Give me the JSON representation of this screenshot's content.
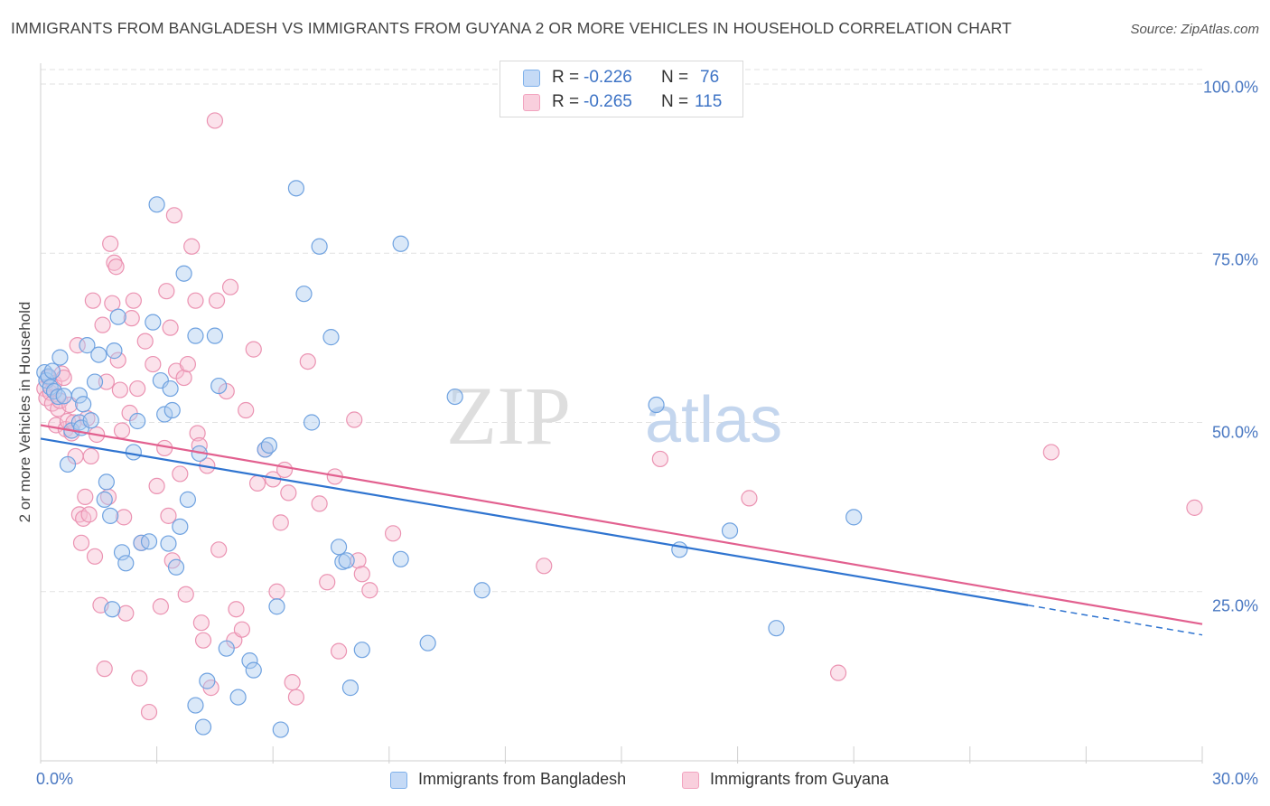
{
  "title": "IMMIGRANTS FROM BANGLADESH VS IMMIGRANTS FROM GUYANA 2 OR MORE VEHICLES IN HOUSEHOLD CORRELATION CHART",
  "source": "Source: ZipAtlas.com",
  "watermark": {
    "zip": "ZIP",
    "atlas": "atlas"
  },
  "colors": {
    "bangladesh": "#7eb0ea",
    "bangladesh_line": "#2f74d0",
    "guyana": "#f2a3bf",
    "guyana_line": "#e2608f",
    "tick_text": "#4a78c2"
  },
  "stats": [
    {
      "r_label": "R =",
      "r_value": "-0.226",
      "n_label": "N =",
      "n_value": "76"
    },
    {
      "r_label": "R =",
      "r_value": "-0.265",
      "n_label": "N =",
      "n_value": "115"
    }
  ],
  "chart_data": {
    "type": "scatter",
    "title": "IMMIGRANTS FROM BANGLADESH VS IMMIGRANTS FROM GUYANA 2 OR MORE VEHICLES IN HOUSEHOLD CORRELATION CHART",
    "xlabel": "",
    "ylabel": "2 or more Vehicles in Household",
    "xlim": [
      0,
      30
    ],
    "ylim": [
      0,
      102
    ],
    "x_tick_labels": [
      "0.0%",
      "30.0%"
    ],
    "y_ticks": [
      25,
      50,
      75,
      100
    ],
    "y_tick_labels": [
      "25.0%",
      "50.0%",
      "75.0%",
      "100.0%"
    ],
    "grid": true,
    "legend_position": "bottom-center",
    "series": [
      {
        "name": "Immigrants from Bangladesh",
        "color": "#7eb0ea",
        "trend": {
          "x": [
            0,
            25.5
          ],
          "y": [
            47.6,
            23.0
          ],
          "dashed_extension_to": [
            30,
            18.6
          ]
        },
        "points": [
          [
            0.1,
            57.4
          ],
          [
            0.15,
            56.2
          ],
          [
            0.2,
            56.8
          ],
          [
            0.25,
            55.2
          ],
          [
            0.3,
            57.6
          ],
          [
            0.35,
            54.6
          ],
          [
            0.45,
            53.8
          ],
          [
            0.5,
            59.6
          ],
          [
            0.6,
            53.9
          ],
          [
            0.7,
            43.8
          ],
          [
            0.8,
            48.8
          ],
          [
            1.0,
            50.0
          ],
          [
            1.0,
            54.0
          ],
          [
            1.05,
            49.2
          ],
          [
            1.1,
            52.7
          ],
          [
            1.2,
            61.4
          ],
          [
            1.3,
            50.3
          ],
          [
            1.4,
            56.0
          ],
          [
            1.5,
            60.0
          ],
          [
            1.65,
            38.6
          ],
          [
            1.7,
            41.2
          ],
          [
            1.8,
            36.2
          ],
          [
            1.85,
            22.4
          ],
          [
            1.9,
            60.6
          ],
          [
            2.0,
            65.6
          ],
          [
            2.1,
            30.8
          ],
          [
            2.2,
            29.2
          ],
          [
            2.4,
            45.6
          ],
          [
            2.5,
            50.2
          ],
          [
            2.6,
            32.2
          ],
          [
            2.8,
            32.4
          ],
          [
            2.9,
            64.8
          ],
          [
            3.0,
            82.2
          ],
          [
            3.1,
            56.2
          ],
          [
            3.2,
            51.2
          ],
          [
            3.3,
            32.1
          ],
          [
            3.35,
            55.0
          ],
          [
            3.4,
            51.8
          ],
          [
            3.5,
            28.6
          ],
          [
            3.6,
            34.6
          ],
          [
            3.7,
            72.0
          ],
          [
            3.8,
            38.6
          ],
          [
            4.0,
            62.8
          ],
          [
            4.1,
            45.4
          ],
          [
            4.0,
            8.2
          ],
          [
            4.2,
            5.0
          ],
          [
            4.3,
            11.8
          ],
          [
            4.5,
            62.8
          ],
          [
            4.6,
            55.4
          ],
          [
            4.8,
            16.6
          ],
          [
            5.1,
            9.4
          ],
          [
            5.4,
            14.8
          ],
          [
            5.5,
            13.4
          ],
          [
            5.8,
            46.0
          ],
          [
            5.9,
            46.6
          ],
          [
            6.1,
            22.8
          ],
          [
            6.2,
            4.6
          ],
          [
            6.6,
            84.6
          ],
          [
            6.8,
            69.0
          ],
          [
            7.0,
            50.0
          ],
          [
            7.2,
            76.0
          ],
          [
            7.5,
            62.6
          ],
          [
            7.7,
            31.6
          ],
          [
            7.8,
            29.4
          ],
          [
            7.9,
            29.6
          ],
          [
            8.0,
            10.8
          ],
          [
            8.3,
            16.4
          ],
          [
            9.3,
            76.4
          ],
          [
            9.3,
            29.8
          ],
          [
            10.0,
            17.4
          ],
          [
            10.7,
            53.8
          ],
          [
            11.4,
            25.2
          ],
          [
            15.9,
            52.6
          ],
          [
            16.5,
            31.2
          ],
          [
            17.8,
            34.0
          ],
          [
            19.0,
            19.6
          ],
          [
            21.0,
            36.0
          ]
        ]
      },
      {
        "name": "Immigrants from Guyana",
        "color": "#f2a3bf",
        "trend": {
          "x": [
            0,
            30
          ],
          "y": [
            49.6,
            20.2
          ]
        },
        "points": [
          [
            0.1,
            55.0
          ],
          [
            0.15,
            53.6
          ],
          [
            0.2,
            56.6
          ],
          [
            0.25,
            54.4
          ],
          [
            0.3,
            52.8
          ],
          [
            0.35,
            55.8
          ],
          [
            0.4,
            49.6
          ],
          [
            0.45,
            52.0
          ],
          [
            0.5,
            53.2
          ],
          [
            0.55,
            57.2
          ],
          [
            0.6,
            56.6
          ],
          [
            0.65,
            49.0
          ],
          [
            0.7,
            50.2
          ],
          [
            0.75,
            52.6
          ],
          [
            0.8,
            48.4
          ],
          [
            0.85,
            50.0
          ],
          [
            0.9,
            45.0
          ],
          [
            0.95,
            61.4
          ],
          [
            1.0,
            36.4
          ],
          [
            1.05,
            32.2
          ],
          [
            1.1,
            35.8
          ],
          [
            1.15,
            39.0
          ],
          [
            1.2,
            50.6
          ],
          [
            1.25,
            36.4
          ],
          [
            1.3,
            45.0
          ],
          [
            1.35,
            68.0
          ],
          [
            1.4,
            30.2
          ],
          [
            1.45,
            48.2
          ],
          [
            1.55,
            23.0
          ],
          [
            1.6,
            64.4
          ],
          [
            1.65,
            13.6
          ],
          [
            1.7,
            56.0
          ],
          [
            1.75,
            39.0
          ],
          [
            1.8,
            76.4
          ],
          [
            1.85,
            67.6
          ],
          [
            1.9,
            73.6
          ],
          [
            1.95,
            73.0
          ],
          [
            2.0,
            59.2
          ],
          [
            2.05,
            54.8
          ],
          [
            2.1,
            48.8
          ],
          [
            2.15,
            36.0
          ],
          [
            2.2,
            21.8
          ],
          [
            2.3,
            51.4
          ],
          [
            2.35,
            65.4
          ],
          [
            2.4,
            68.0
          ],
          [
            2.5,
            55.0
          ],
          [
            2.55,
            12.2
          ],
          [
            2.6,
            32.2
          ],
          [
            2.7,
            62.0
          ],
          [
            2.8,
            7.2
          ],
          [
            2.9,
            58.6
          ],
          [
            3.0,
            40.6
          ],
          [
            3.1,
            22.8
          ],
          [
            3.2,
            46.2
          ],
          [
            3.25,
            69.4
          ],
          [
            3.3,
            36.2
          ],
          [
            3.35,
            64.0
          ],
          [
            3.4,
            29.6
          ],
          [
            3.45,
            80.6
          ],
          [
            3.5,
            57.6
          ],
          [
            3.6,
            42.4
          ],
          [
            3.7,
            56.6
          ],
          [
            3.75,
            24.6
          ],
          [
            3.8,
            58.6
          ],
          [
            3.9,
            76.0
          ],
          [
            4.0,
            68.0
          ],
          [
            4.05,
            48.4
          ],
          [
            4.1,
            46.6
          ],
          [
            4.15,
            20.4
          ],
          [
            4.2,
            17.8
          ],
          [
            4.3,
            43.6
          ],
          [
            4.4,
            10.8
          ],
          [
            4.5,
            94.6
          ],
          [
            4.55,
            68.0
          ],
          [
            4.6,
            31.2
          ],
          [
            4.8,
            54.6
          ],
          [
            4.9,
            70.0
          ],
          [
            5.0,
            17.8
          ],
          [
            5.05,
            22.4
          ],
          [
            5.2,
            19.4
          ],
          [
            5.3,
            51.8
          ],
          [
            5.5,
            60.8
          ],
          [
            5.6,
            41.0
          ],
          [
            5.8,
            46.0
          ],
          [
            6.0,
            41.6
          ],
          [
            6.1,
            25.0
          ],
          [
            6.2,
            35.2
          ],
          [
            6.3,
            43.0
          ],
          [
            6.4,
            39.6
          ],
          [
            6.5,
            11.6
          ],
          [
            6.6,
            9.4
          ],
          [
            6.9,
            59.0
          ],
          [
            7.2,
            38.0
          ],
          [
            7.4,
            26.4
          ],
          [
            7.6,
            42.0
          ],
          [
            7.7,
            16.2
          ],
          [
            8.1,
            50.4
          ],
          [
            8.2,
            29.6
          ],
          [
            8.3,
            27.6
          ],
          [
            8.5,
            25.2
          ],
          [
            9.1,
            33.6
          ],
          [
            13.0,
            28.8
          ],
          [
            16.0,
            44.6
          ],
          [
            18.3,
            38.8
          ],
          [
            20.6,
            13.0
          ],
          [
            26.1,
            45.6
          ],
          [
            29.8,
            37.4
          ]
        ]
      }
    ]
  },
  "legend": [
    "Immigrants from Bangladesh",
    "Immigrants from Guyana"
  ]
}
